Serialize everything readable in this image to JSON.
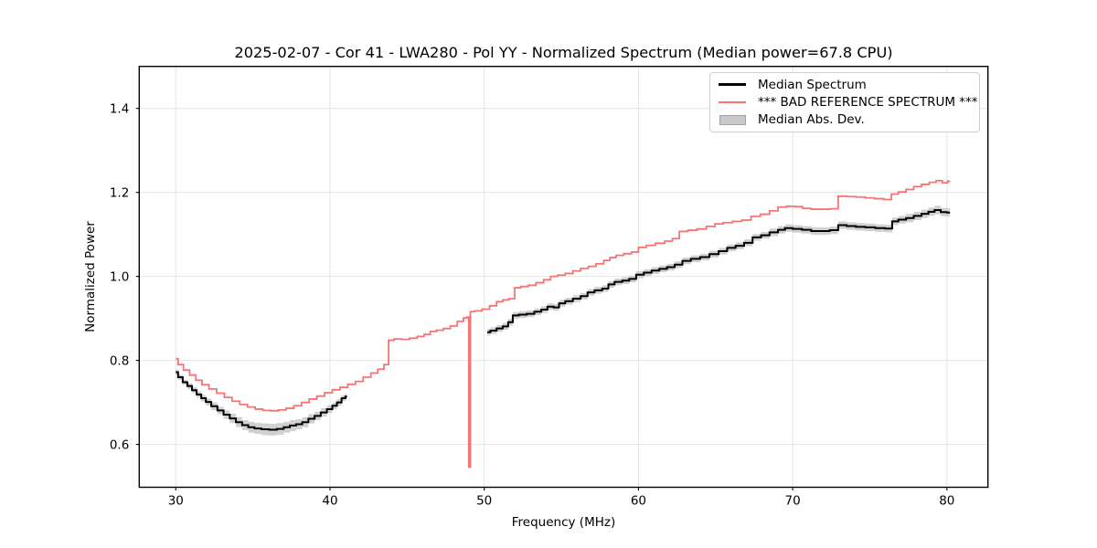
{
  "figure": {
    "background": "#ffffff"
  },
  "chart_data": {
    "type": "line",
    "title": "2025-02-07 - Cor 41 - LWA280 - Pol YY - Normalized Spectrum (Median power=67.8 CPU)",
    "xlabel": "Frequency (MHz)",
    "ylabel": "Normalized Power",
    "xlim": [
      27.63,
      82.66
    ],
    "ylim": [
      0.498,
      1.5
    ],
    "xticks": [
      30,
      40,
      50,
      60,
      70,
      80
    ],
    "xtick_labels": [
      "30",
      "40",
      "50",
      "60",
      "70",
      "80"
    ],
    "yticks": [
      0.6,
      0.8,
      1.0,
      1.2,
      1.4
    ],
    "ytick_labels": [
      "0.6",
      "0.8",
      "1.0",
      "1.2",
      "1.4"
    ],
    "grid": true,
    "grid_color": "#e4e4e4",
    "axis_color": "#000000",
    "legend": {
      "position": "upper right",
      "entries": [
        {
          "label": "Median Spectrum",
          "type": "line",
          "color": "#000000"
        },
        {
          "label": "*** BAD REFERENCE SPECTRUM ***",
          "type": "line",
          "color": "#f57575"
        },
        {
          "label": "Median Abs. Dev.",
          "type": "patch",
          "color": "#c9c9c9",
          "edge": "#a0a0a0"
        }
      ]
    },
    "series": [
      {
        "name": "Median Spectrum",
        "color": "#000000",
        "width": 2,
        "style": "step",
        "band_color": "#c9c9c9",
        "segments": [
          [
            [
              30.0,
              0.772,
              0.006
            ],
            [
              30.3,
              0.76,
              0.006
            ],
            [
              30.6,
              0.748,
              0.006
            ],
            [
              30.9,
              0.739,
              0.007
            ],
            [
              31.2,
              0.729,
              0.007
            ],
            [
              31.5,
              0.719,
              0.007
            ],
            [
              31.8,
              0.71,
              0.008
            ],
            [
              32.1,
              0.701,
              0.008
            ],
            [
              32.5,
              0.691,
              0.009
            ],
            [
              32.9,
              0.681,
              0.009
            ],
            [
              33.3,
              0.671,
              0.01
            ],
            [
              33.7,
              0.662,
              0.011
            ],
            [
              34.1,
              0.653,
              0.012
            ],
            [
              34.5,
              0.646,
              0.012
            ],
            [
              34.9,
              0.641,
              0.013
            ],
            [
              35.3,
              0.638,
              0.013
            ],
            [
              35.8,
              0.636,
              0.014
            ],
            [
              36.3,
              0.635,
              0.014
            ],
            [
              36.8,
              0.637,
              0.014
            ],
            [
              37.2,
              0.641,
              0.013
            ],
            [
              37.6,
              0.645,
              0.013
            ],
            [
              38.0,
              0.648,
              0.012
            ],
            [
              38.4,
              0.653,
              0.012
            ],
            [
              38.8,
              0.661,
              0.011
            ],
            [
              39.2,
              0.668,
              0.01
            ],
            [
              39.6,
              0.676,
              0.01
            ],
            [
              40.0,
              0.684,
              0.009
            ],
            [
              40.3,
              0.692,
              0.008
            ],
            [
              40.6,
              0.7,
              0.008
            ],
            [
              40.9,
              0.71,
              0.007
            ],
            [
              41.1,
              0.714,
              0.007
            ]
          ],
          [
            [
              50.2,
              0.867,
              0.008
            ],
            [
              50.6,
              0.871,
              0.008
            ],
            [
              51.0,
              0.876,
              0.008
            ],
            [
              51.4,
              0.881,
              0.008
            ],
            [
              51.7,
              0.891,
              0.008
            ],
            [
              52.0,
              0.907,
              0.008
            ],
            [
              52.5,
              0.909,
              0.008
            ],
            [
              53.0,
              0.911,
              0.008
            ],
            [
              53.5,
              0.916,
              0.008
            ],
            [
              53.9,
              0.921,
              0.008
            ],
            [
              54.3,
              0.928,
              0.008
            ],
            [
              54.7,
              0.926,
              0.008
            ],
            [
              55.0,
              0.936,
              0.008
            ],
            [
              55.5,
              0.941,
              0.008
            ],
            [
              56.0,
              0.947,
              0.008
            ],
            [
              56.5,
              0.953,
              0.008
            ],
            [
              56.9,
              0.962,
              0.008
            ],
            [
              57.4,
              0.967,
              0.008
            ],
            [
              57.9,
              0.971,
              0.008
            ],
            [
              58.2,
              0.981,
              0.008
            ],
            [
              58.7,
              0.987,
              0.008
            ],
            [
              59.2,
              0.99,
              0.008
            ],
            [
              59.6,
              0.994,
              0.008
            ],
            [
              60.1,
              1.004,
              0.008
            ],
            [
              60.6,
              1.009,
              0.008
            ],
            [
              61.1,
              1.014,
              0.008
            ],
            [
              61.6,
              1.018,
              0.008
            ],
            [
              62.1,
              1.022,
              0.008
            ],
            [
              62.6,
              1.028,
              0.008
            ],
            [
              63.1,
              1.037,
              0.008
            ],
            [
              63.7,
              1.042,
              0.008
            ],
            [
              64.3,
              1.046,
              0.008
            ],
            [
              64.9,
              1.053,
              0.008
            ],
            [
              65.5,
              1.06,
              0.008
            ],
            [
              66.0,
              1.068,
              0.008
            ],
            [
              66.6,
              1.073,
              0.008
            ],
            [
              67.1,
              1.08,
              0.008
            ],
            [
              67.7,
              1.093,
              0.008
            ],
            [
              68.2,
              1.098,
              0.008
            ],
            [
              68.8,
              1.105,
              0.009
            ],
            [
              69.3,
              1.111,
              0.009
            ],
            [
              69.7,
              1.115,
              0.009
            ],
            [
              70.3,
              1.113,
              0.009
            ],
            [
              70.9,
              1.111,
              0.009
            ],
            [
              71.5,
              1.108,
              0.009
            ],
            [
              72.1,
              1.108,
              0.009
            ],
            [
              72.7,
              1.11,
              0.009
            ],
            [
              73.2,
              1.122,
              0.009
            ],
            [
              73.8,
              1.12,
              0.009
            ],
            [
              74.4,
              1.118,
              0.009
            ],
            [
              75.0,
              1.117,
              0.009
            ],
            [
              75.7,
              1.115,
              0.009
            ],
            [
              76.3,
              1.114,
              0.009
            ],
            [
              76.6,
              1.131,
              0.009
            ],
            [
              77.1,
              1.135,
              0.009
            ],
            [
              77.6,
              1.139,
              0.01
            ],
            [
              78.1,
              1.144,
              0.01
            ],
            [
              78.6,
              1.149,
              0.01
            ],
            [
              79.0,
              1.154,
              0.01
            ],
            [
              79.4,
              1.158,
              0.01
            ],
            [
              79.8,
              1.153,
              0.01
            ],
            [
              80.2,
              1.152,
              0.01
            ]
          ]
        ]
      },
      {
        "name": "*** BAD REFERENCE SPECTRUM ***",
        "color": "#f57575",
        "width": 1.8,
        "style": "step",
        "segments": [
          [
            [
              30.0,
              0.804
            ],
            [
              30.3,
              0.79
            ],
            [
              30.7,
              0.777
            ],
            [
              31.1,
              0.765
            ],
            [
              31.5,
              0.753
            ],
            [
              31.9,
              0.742
            ],
            [
              32.4,
              0.732
            ],
            [
              32.9,
              0.722
            ],
            [
              33.4,
              0.712
            ],
            [
              33.9,
              0.703
            ],
            [
              34.4,
              0.695
            ],
            [
              34.9,
              0.689
            ],
            [
              35.4,
              0.684
            ],
            [
              35.9,
              0.681
            ],
            [
              36.4,
              0.68
            ],
            [
              36.9,
              0.682
            ],
            [
              37.4,
              0.686
            ],
            [
              37.9,
              0.692
            ],
            [
              38.4,
              0.7
            ],
            [
              38.9,
              0.708
            ],
            [
              39.4,
              0.715
            ],
            [
              39.9,
              0.723
            ],
            [
              40.4,
              0.73
            ],
            [
              40.9,
              0.736
            ],
            [
              41.4,
              0.743
            ],
            [
              41.9,
              0.75
            ],
            [
              42.4,
              0.76
            ],
            [
              42.9,
              0.77
            ],
            [
              43.3,
              0.779
            ],
            [
              43.7,
              0.79
            ],
            [
              43.9,
              0.848
            ],
            [
              44.4,
              0.851
            ],
            [
              44.9,
              0.85
            ],
            [
              45.4,
              0.853
            ],
            [
              45.9,
              0.857
            ],
            [
              46.3,
              0.862
            ],
            [
              46.7,
              0.869
            ],
            [
              47.1,
              0.872
            ],
            [
              47.6,
              0.876
            ],
            [
              48.0,
              0.882
            ],
            [
              48.5,
              0.893
            ],
            [
              48.8,
              0.901
            ],
            [
              48.95,
              0.903
            ],
            [
              49.05,
              0.546
            ],
            [
              49.15,
              0.916
            ],
            [
              49.6,
              0.918
            ],
            [
              50.1,
              0.922
            ],
            [
              50.6,
              0.93
            ],
            [
              51.0,
              0.94
            ],
            [
              51.4,
              0.944
            ],
            [
              51.8,
              0.947
            ],
            [
              52.15,
              0.973
            ],
            [
              52.6,
              0.976
            ],
            [
              53.1,
              0.979
            ],
            [
              53.6,
              0.985
            ],
            [
              54.1,
              0.992
            ],
            [
              54.5,
              1.0
            ],
            [
              55.0,
              1.003
            ],
            [
              55.5,
              1.007
            ],
            [
              56.0,
              1.013
            ],
            [
              56.5,
              1.019
            ],
            [
              57.0,
              1.024
            ],
            [
              57.5,
              1.03
            ],
            [
              58.0,
              1.038
            ],
            [
              58.3,
              1.045
            ],
            [
              58.8,
              1.05
            ],
            [
              59.3,
              1.054
            ],
            [
              59.8,
              1.058
            ],
            [
              60.2,
              1.069
            ],
            [
              60.8,
              1.074
            ],
            [
              61.4,
              1.079
            ],
            [
              62.0,
              1.084
            ],
            [
              62.4,
              1.09
            ],
            [
              62.9,
              1.107
            ],
            [
              63.5,
              1.11
            ],
            [
              64.1,
              1.113
            ],
            [
              64.7,
              1.119
            ],
            [
              65.2,
              1.125
            ],
            [
              65.8,
              1.128
            ],
            [
              66.4,
              1.131
            ],
            [
              67.0,
              1.134
            ],
            [
              67.6,
              1.143
            ],
            [
              68.2,
              1.148
            ],
            [
              68.8,
              1.156
            ],
            [
              69.3,
              1.165
            ],
            [
              69.9,
              1.167
            ],
            [
              70.4,
              1.166
            ],
            [
              70.9,
              1.162
            ],
            [
              71.5,
              1.16
            ],
            [
              72.1,
              1.16
            ],
            [
              72.7,
              1.161
            ],
            [
              73.2,
              1.191
            ],
            [
              73.8,
              1.19
            ],
            [
              74.4,
              1.189
            ],
            [
              75.0,
              1.187
            ],
            [
              75.6,
              1.185
            ],
            [
              76.2,
              1.183
            ],
            [
              76.6,
              1.196
            ],
            [
              77.1,
              1.201
            ],
            [
              77.6,
              1.207
            ],
            [
              78.1,
              1.214
            ],
            [
              78.6,
              1.219
            ],
            [
              79.1,
              1.224
            ],
            [
              79.5,
              1.228
            ],
            [
              79.9,
              1.223
            ],
            [
              80.2,
              1.227
            ]
          ]
        ]
      }
    ]
  }
}
